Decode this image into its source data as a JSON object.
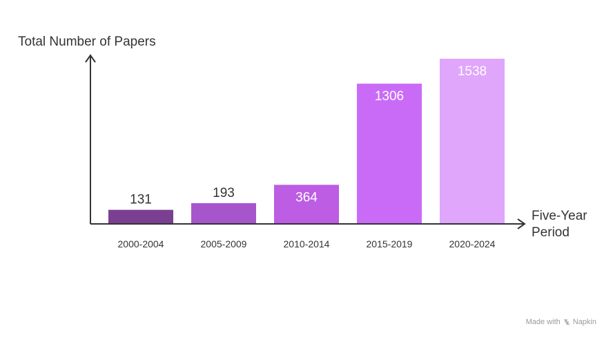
{
  "chart_data": {
    "type": "bar",
    "categories": [
      "2000-2004",
      "2005-2009",
      "2010-2014",
      "2015-2019",
      "2020-2024"
    ],
    "values": [
      131,
      193,
      364,
      1306,
      1538
    ],
    "ylabel": "Total Number of Papers",
    "xlabel_lines": [
      "Five-Year",
      "Period"
    ],
    "ylim": [
      0,
      1538
    ],
    "grid": false,
    "legend": "none",
    "colors": [
      "#7b3f92",
      "#a655cc",
      "#bc5de4",
      "#ca6bf7",
      "#e0a6fb"
    ],
    "label_colors": [
      "#333333",
      "#ffffff",
      "#ffffff",
      "#ffffff",
      "#ffffff"
    ]
  },
  "watermark": {
    "prefix": "Made with",
    "brand": "Napkin",
    "icon": "napkin-logo-icon"
  }
}
